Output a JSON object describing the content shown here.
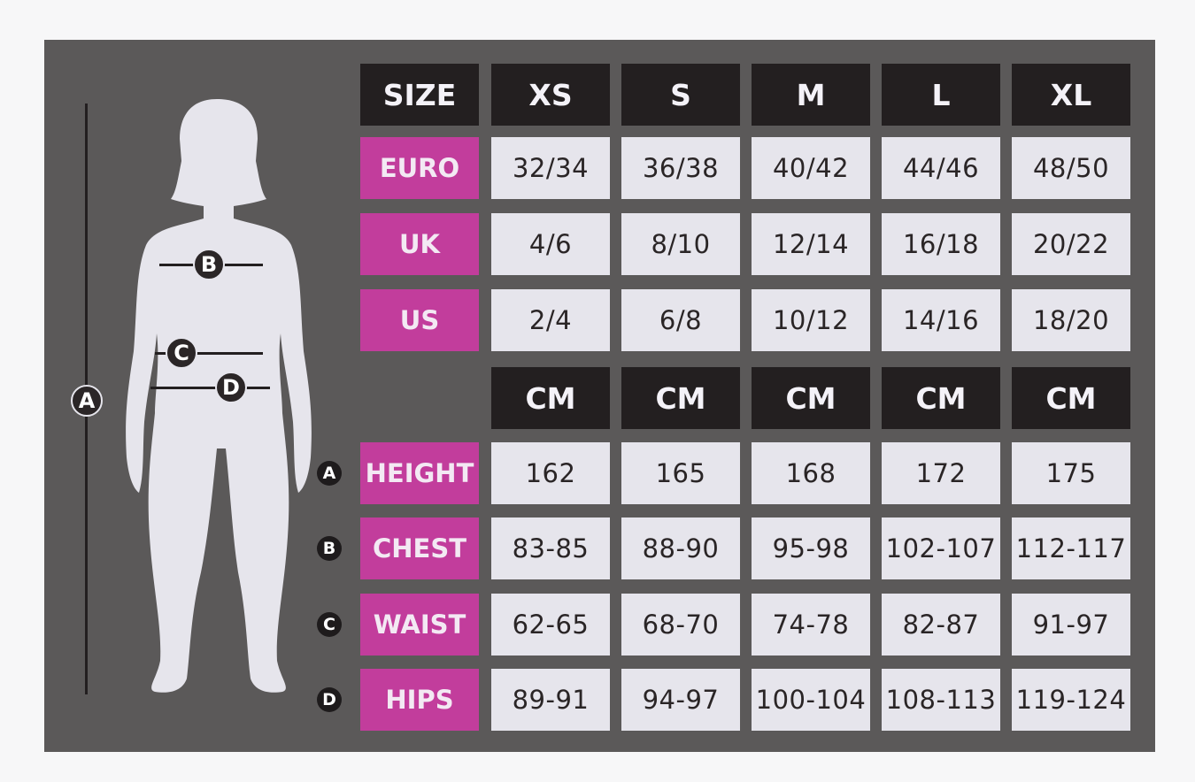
{
  "header": {
    "label": "SIZE",
    "sizes": [
      "XS",
      "S",
      "M",
      "L",
      "XL"
    ]
  },
  "conversion_rows": [
    {
      "label": "EURO",
      "values": [
        "32/34",
        "36/38",
        "40/42",
        "44/46",
        "48/50"
      ]
    },
    {
      "label": "UK",
      "values": [
        "4/6",
        "8/10",
        "12/14",
        "16/18",
        "20/22"
      ]
    },
    {
      "label": "US",
      "values": [
        "2/4",
        "6/8",
        "10/12",
        "14/16",
        "18/20"
      ]
    }
  ],
  "unit_row": [
    "CM",
    "CM",
    "CM",
    "CM",
    "CM"
  ],
  "measurement_rows": [
    {
      "marker": "A",
      "label": "HEIGHT",
      "values": [
        "162",
        "165",
        "168",
        "172",
        "175"
      ]
    },
    {
      "marker": "B",
      "label": "CHEST",
      "values": [
        "83-85",
        "88-90",
        "95-98",
        "102-107",
        "112-117"
      ]
    },
    {
      "marker": "C",
      "label": "WAIST",
      "values": [
        "62-65",
        "68-70",
        "74-78",
        "82-87",
        "91-97"
      ]
    },
    {
      "marker": "D",
      "label": "HIPS",
      "values": [
        "89-91",
        "94-97",
        "100-104",
        "108-113",
        "119-124"
      ]
    }
  ],
  "figure": {
    "markers": [
      "A",
      "B",
      "C",
      "D"
    ]
  },
  "colors": {
    "background": "#5b5959",
    "header": "#231f20",
    "label": "#c23d9c",
    "value": "#e6e5ec"
  }
}
